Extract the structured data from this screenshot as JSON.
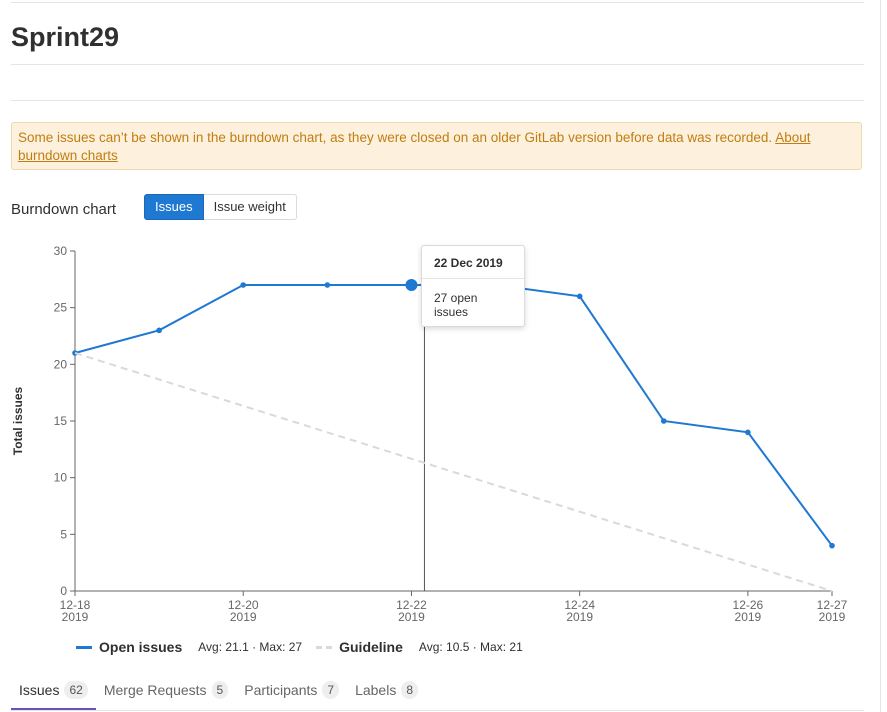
{
  "page": {
    "title": "Sprint29"
  },
  "alert": {
    "text": "Some issues can’t be shown in the burndown chart, as they were closed on an older GitLab version before data was recorded. ",
    "link_text": "About burndown charts"
  },
  "burndown": {
    "title": "Burndown chart",
    "toggle": {
      "issues_label": "Issues",
      "weight_label": "Issue weight"
    }
  },
  "chart_data": {
    "type": "line",
    "ylabel": "Total issues",
    "xlabel": "",
    "ylim": [
      0,
      30
    ],
    "yticks": [
      0,
      5,
      10,
      15,
      20,
      25,
      30
    ],
    "x_range": [
      "2019-12-18",
      "2019-12-27"
    ],
    "xticks": [
      {
        "date": "2019-12-18",
        "line1": "12-18",
        "line2": "2019"
      },
      {
        "date": "2019-12-20",
        "line1": "12-20",
        "line2": "2019"
      },
      {
        "date": "2019-12-22",
        "line1": "12-22",
        "line2": "2019"
      },
      {
        "date": "2019-12-24",
        "line1": "12-24",
        "line2": "2019"
      },
      {
        "date": "2019-12-26",
        "line1": "12-26",
        "line2": "2019"
      },
      {
        "date": "2019-12-27",
        "line1": "12-27",
        "line2": "2019"
      }
    ],
    "series": [
      {
        "name": "Open issues",
        "color": "#1f78d1",
        "style": "solid",
        "x": [
          "2019-12-18",
          "2019-12-19",
          "2019-12-20",
          "2019-12-21",
          "2019-12-22",
          "2019-12-23",
          "2019-12-24",
          "2019-12-25",
          "2019-12-26",
          "2019-12-27"
        ],
        "values": [
          21,
          23,
          27,
          27,
          27,
          27,
          26,
          15,
          14,
          4
        ]
      },
      {
        "name": "Guideline",
        "color": "#d9d9d9",
        "style": "dashed",
        "x": [
          "2019-12-18",
          "2019-12-27"
        ],
        "values": [
          21,
          0
        ]
      }
    ],
    "hover": {
      "date": "2019-12-22",
      "value": 27
    },
    "grid": false
  },
  "tooltip": {
    "date": "22 Dec 2019",
    "value": "27 open issues"
  },
  "legend": {
    "open": {
      "name": "Open issues",
      "stats": "Avg: 21.1 · Max: 27"
    },
    "guideline": {
      "name": "Guideline",
      "stats": "Avg: 10.5 · Max: 21"
    }
  },
  "tabs": [
    {
      "label": "Issues",
      "count": "62"
    },
    {
      "label": "Merge Requests",
      "count": "5"
    },
    {
      "label": "Participants",
      "count": "7"
    },
    {
      "label": "Labels",
      "count": "8"
    }
  ]
}
